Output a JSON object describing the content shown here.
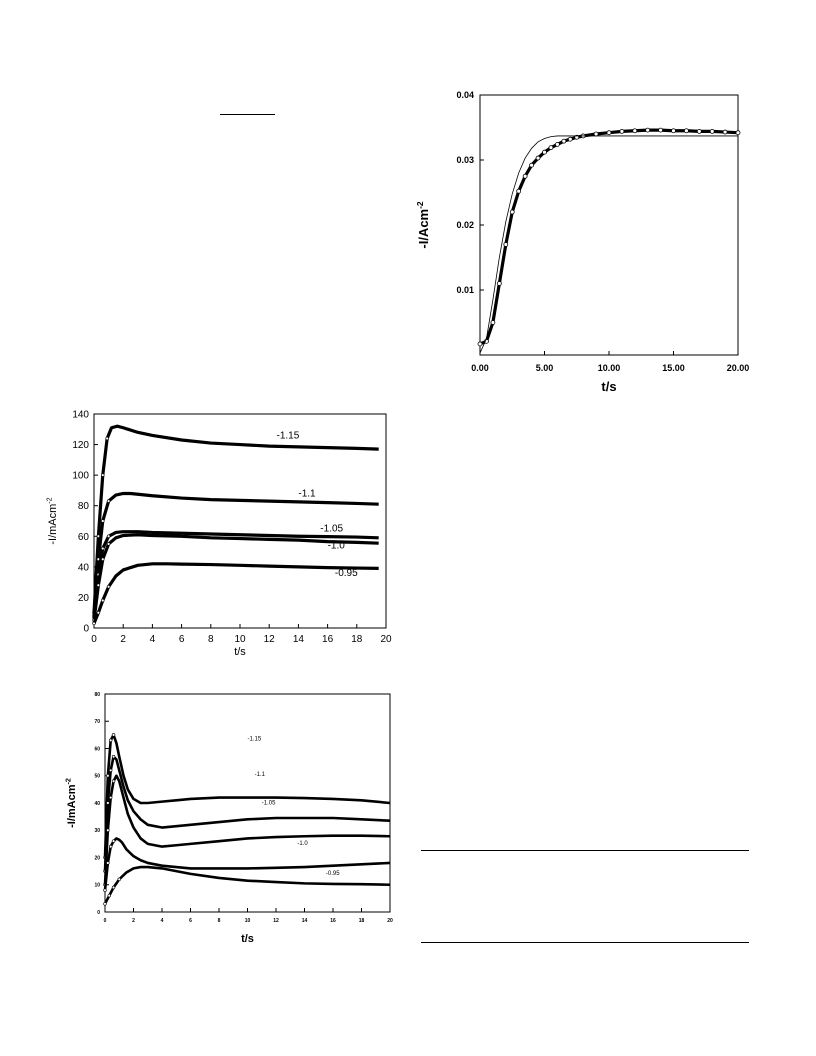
{
  "chart_data": [
    {
      "id": "chart-a",
      "type": "line",
      "xlabel": "t/s",
      "ylabel": "-I/Acm",
      "ylabel_sup": "-2",
      "xlim": [
        0,
        20
      ],
      "ylim": [
        0,
        0.04
      ],
      "x_ticks": [
        0,
        5,
        10,
        15,
        20
      ],
      "x_tick_labels": [
        "0.00",
        "5.00",
        "10.00",
        "15.00",
        "20.00"
      ],
      "y_ticks": [
        0.01,
        0.02,
        0.03,
        0.04
      ],
      "y_tick_labels": [
        "0.01",
        "0.02",
        "0.03",
        "0.04"
      ],
      "grid": false,
      "series": [
        {
          "style": "markers",
          "x": [
            0.0,
            0.5,
            1.0,
            1.5,
            2.0,
            2.5,
            3.0,
            3.5,
            4.0,
            4.5,
            5.0,
            5.5,
            6.0,
            6.5,
            7.0,
            7.5,
            8.0,
            9.0,
            10.0,
            11.0,
            12.0,
            13.0,
            14.0,
            15.0,
            16.0,
            17.0,
            18.0,
            19.0,
            20.0
          ],
          "y": [
            0.0017,
            0.0021,
            0.005,
            0.011,
            0.017,
            0.022,
            0.0252,
            0.0275,
            0.0292,
            0.0303,
            0.0312,
            0.0319,
            0.0324,
            0.0329,
            0.0332,
            0.0335,
            0.0337,
            0.034,
            0.0342,
            0.0344,
            0.0345,
            0.0346,
            0.0346,
            0.0345,
            0.0345,
            0.0344,
            0.0344,
            0.0343,
            0.0342
          ]
        },
        {
          "style": "line",
          "x": [
            0.0,
            0.5,
            1.0,
            1.5,
            2.0,
            2.5,
            3.0,
            3.5,
            4.0,
            4.5,
            5.0,
            5.5,
            6.0,
            6.5,
            7.0,
            8.0,
            10.0,
            12.0,
            14.0,
            16.0,
            18.0,
            20.0
          ],
          "y": [
            0.0003,
            0.0025,
            0.0085,
            0.015,
            0.0205,
            0.0248,
            0.028,
            0.0303,
            0.0318,
            0.0328,
            0.0333,
            0.0336,
            0.0337,
            0.0337,
            0.0337,
            0.0337,
            0.0337,
            0.0337,
            0.0337,
            0.0337,
            0.0337,
            0.0337
          ]
        }
      ]
    },
    {
      "id": "chart-b",
      "type": "line",
      "xlabel": "t/s",
      "ylabel": "-I/mAcm",
      "ylabel_sup": "-2",
      "xlim": [
        0,
        20
      ],
      "ylim": [
        0,
        140
      ],
      "x_ticks": [
        0,
        2,
        4,
        6,
        8,
        10,
        12,
        14,
        16,
        18,
        20
      ],
      "x_tick_labels": [
        "0",
        "2",
        "4",
        "6",
        "8",
        "10",
        "12",
        "14",
        "16",
        "18",
        "20"
      ],
      "y_ticks": [
        0,
        20,
        40,
        60,
        80,
        100,
        120,
        140
      ],
      "y_tick_labels": [
        "0",
        "20",
        "40",
        "60",
        "80",
        "100",
        "120",
        "140"
      ],
      "grid": false,
      "series": [
        {
          "name": "-1.15",
          "label_at": [
            12.5,
            124
          ],
          "x": [
            0.0,
            0.3,
            0.6,
            0.9,
            1.2,
            1.6,
            2.0,
            3.0,
            4.0,
            6.0,
            8.0,
            10.0,
            12.0,
            14.0,
            16.0,
            18.0,
            19.5
          ],
          "y": [
            10,
            60,
            100,
            124,
            131,
            132,
            131,
            128,
            126,
            123,
            121,
            120,
            119,
            118.5,
            118,
            117.5,
            117
          ]
        },
        {
          "name": "-1.1",
          "label_at": [
            14.0,
            86
          ],
          "x": [
            0.0,
            0.3,
            0.6,
            1.0,
            1.5,
            2.0,
            2.5,
            3.0,
            4.0,
            6.0,
            8.0,
            10.0,
            12.0,
            14.0,
            16.0,
            18.0,
            19.5
          ],
          "y": [
            8,
            45,
            70,
            83,
            87,
            88,
            88,
            87.5,
            86.5,
            85,
            84,
            83.5,
            83,
            82.5,
            82,
            81.5,
            81
          ]
        },
        {
          "name": "-1.05",
          "label_at": [
            15.5,
            63
          ],
          "x": [
            0.0,
            0.3,
            0.6,
            1.0,
            1.5,
            2.0,
            3.0,
            4.0,
            6.0,
            8.0,
            10.0,
            12.0,
            14.0,
            16.0,
            18.0,
            19.5
          ],
          "y": [
            7,
            35,
            52,
            60,
            62.5,
            63,
            63,
            62.5,
            62,
            61.5,
            61,
            60.5,
            60,
            59.8,
            59.5,
            59
          ]
        },
        {
          "name": "-1.0",
          "label_at": [
            16.0,
            52
          ],
          "x": [
            0.0,
            0.3,
            0.6,
            1.0,
            1.5,
            2.0,
            3.0,
            4.0,
            6.0,
            8.0,
            10.0,
            12.0,
            14.0,
            16.0,
            18.0,
            19.5
          ],
          "y": [
            5,
            28,
            45,
            55,
            59,
            60.5,
            61,
            60.5,
            60,
            59,
            58.5,
            58,
            57.5,
            56.5,
            56,
            55.5
          ]
        },
        {
          "name": "-0.95",
          "label_at": [
            16.5,
            34
          ],
          "x": [
            0.0,
            0.3,
            0.6,
            1.0,
            1.5,
            2.0,
            3.0,
            4.0,
            5.0,
            6.0,
            8.0,
            10.0,
            12.0,
            14.0,
            16.0,
            18.0,
            19.5
          ],
          "y": [
            3,
            10,
            18,
            27,
            34,
            38,
            41,
            42,
            42,
            41.8,
            41.5,
            41,
            40.5,
            40,
            39.5,
            39.2,
            39
          ]
        }
      ]
    },
    {
      "id": "chart-c",
      "type": "line",
      "xlabel": "t/s",
      "ylabel": "-I/mAcm",
      "ylabel_sup": "-2",
      "xlim": [
        0,
        20
      ],
      "ylim": [
        0,
        80
      ],
      "x_ticks": [
        0,
        2,
        4,
        6,
        8,
        10,
        12,
        14,
        16,
        18,
        20
      ],
      "x_tick_labels": [
        "0",
        "2",
        "4",
        "6",
        "8",
        "10",
        "12",
        "14",
        "16",
        "18",
        "20"
      ],
      "y_ticks": [
        0,
        10,
        20,
        30,
        40,
        50,
        60,
        70,
        80
      ],
      "y_tick_labels": [
        "0",
        "10",
        "20",
        "30",
        "40",
        "50",
        "60",
        "70",
        "80"
      ],
      "grid": false,
      "series": [
        {
          "name": "-1.15",
          "label_at": [
            10.0,
            63
          ],
          "x": [
            0.0,
            0.2,
            0.4,
            0.6,
            0.8,
            1.0,
            1.3,
            1.6,
            2.0,
            2.5,
            3.0,
            4.0,
            5.0,
            6.0,
            8.0,
            10.0,
            12.0,
            14.0,
            16.0,
            18.0,
            20.0
          ],
          "y": [
            20,
            50,
            63,
            65,
            62,
            57,
            50,
            45,
            41.5,
            40,
            40,
            40.5,
            41,
            41.5,
            42,
            42,
            42,
            41.8,
            41.5,
            41,
            40
          ]
        },
        {
          "name": "-1.1",
          "label_at": [
            10.5,
            50
          ],
          "x": [
            0.0,
            0.2,
            0.4,
            0.6,
            0.8,
            1.0,
            1.3,
            1.6,
            2.0,
            2.5,
            3.0,
            4.0,
            5.0,
            6.0,
            8.0,
            10.0,
            12.0,
            14.0,
            16.0,
            18.0,
            20.0
          ],
          "y": [
            15,
            40,
            52,
            57,
            56,
            52,
            46,
            41,
            37,
            34,
            32,
            31,
            31.5,
            32,
            33,
            34,
            34.5,
            34.5,
            34.5,
            34,
            33.5
          ]
        },
        {
          "name": "-1.05",
          "label_at": [
            11.0,
            39.5
          ],
          "x": [
            0.0,
            0.2,
            0.4,
            0.6,
            0.8,
            1.0,
            1.3,
            1.6,
            2.0,
            2.5,
            3.0,
            4.0,
            5.0,
            6.0,
            8.0,
            10.0,
            12.0,
            14.0,
            16.0,
            18.0,
            20.0
          ],
          "y": [
            10,
            30,
            42,
            48,
            50,
            48,
            42,
            36,
            31,
            27,
            25,
            24,
            24.5,
            25,
            26,
            27,
            27.5,
            27.8,
            28,
            28,
            27.8
          ]
        },
        {
          "name": "-1.0",
          "label_at": [
            13.5,
            24.5
          ],
          "x": [
            0.0,
            0.2,
            0.4,
            0.6,
            0.8,
            1.0,
            1.2,
            1.5,
            2.0,
            2.5,
            3.0,
            4.0,
            5.0,
            6.0,
            8.0,
            10.0,
            12.0,
            14.0,
            16.0,
            18.0,
            20.0
          ],
          "y": [
            8,
            18,
            24,
            26,
            27,
            26.5,
            25.5,
            23,
            20.5,
            19,
            18,
            17,
            16.5,
            16,
            16,
            16,
            16.2,
            16.5,
            17,
            17.5,
            18
          ]
        },
        {
          "name": "-0.95",
          "label_at": [
            15.5,
            13.5
          ],
          "x": [
            0.0,
            0.3,
            0.6,
            1.0,
            1.5,
            2.0,
            2.5,
            3.0,
            4.0,
            5.0,
            6.0,
            8.0,
            10.0,
            12.0,
            14.0,
            16.0,
            18.0,
            20.0
          ],
          "y": [
            3,
            6,
            9,
            12,
            14.5,
            16,
            16.5,
            16.5,
            16,
            15,
            14,
            12.5,
            11.5,
            11,
            10.5,
            10.3,
            10.2,
            10
          ]
        }
      ]
    }
  ]
}
